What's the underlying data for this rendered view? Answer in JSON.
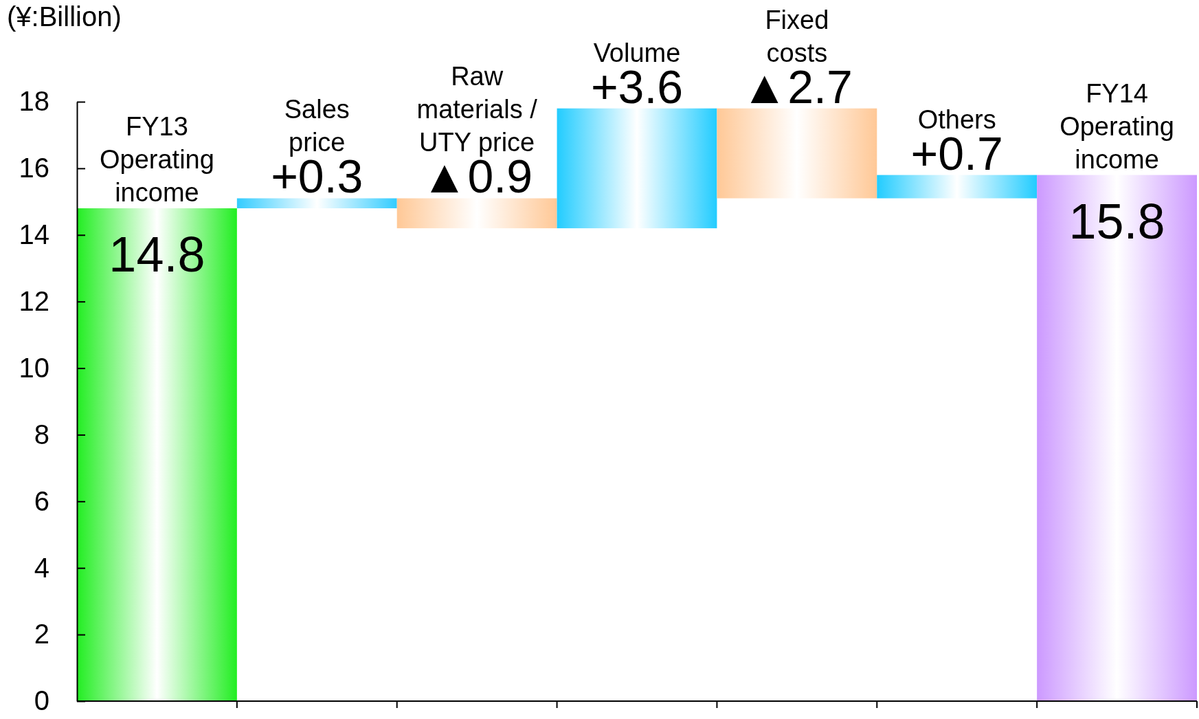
{
  "chart_data": {
    "type": "bar",
    "ylabel": "(¥:Billion)",
    "categories": [
      "FY13 Operating income",
      "Sales price",
      "Raw materials / UTY price",
      "Volume",
      "Fixed costs",
      "Others",
      "FY14 Operating income"
    ],
    "values": [
      14.8,
      0.3,
      -0.9,
      3.6,
      -2.7,
      0.7,
      15.8
    ],
    "base": [
      0,
      14.8,
      15.1,
      14.2,
      17.8,
      15.1,
      0
    ],
    "value_labels": [
      "14.8",
      "+0.3",
      "▲0.9",
      "+3.6",
      "▲2.7",
      "+0.7",
      "15.8"
    ],
    "colors": [
      "#22ee22",
      "#33ccff",
      "#ffc896",
      "#22ccff",
      "#ffc896",
      "#22ccff",
      "#cc99ff"
    ],
    "ylim": [
      0,
      18
    ],
    "yticks": [
      0,
      2,
      4,
      6,
      8,
      10,
      12,
      14,
      16,
      18
    ],
    "grid": false
  }
}
